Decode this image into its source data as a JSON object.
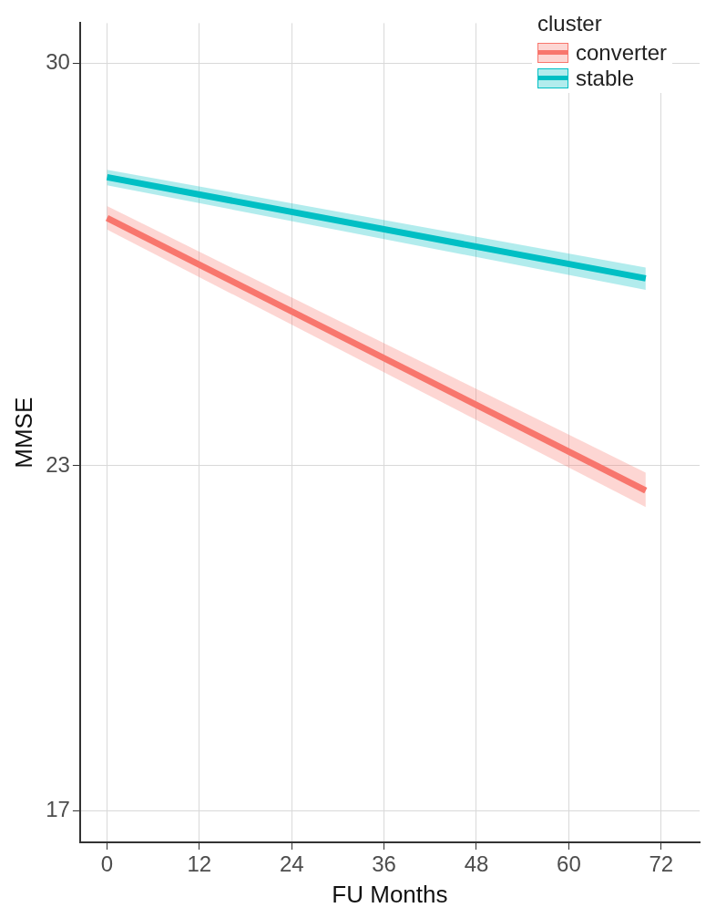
{
  "chart_data": {
    "type": "line",
    "xlabel": "FU Months",
    "ylabel": "MMSE",
    "legend_title": "cluster",
    "legend": "top right",
    "grid": true,
    "marker": "none",
    "line_style": "solid",
    "xlim": [
      -3.5,
      77
    ],
    "x": [
      0,
      70
    ],
    "xticks": [
      0,
      12,
      24,
      36,
      48,
      60,
      72
    ],
    "ylim": [
      16.45,
      30.7
    ],
    "yticks": [
      17,
      23,
      30
    ],
    "series": [
      {
        "name": "converter",
        "color": "#f8766d",
        "values": [
          27.31,
          22.57
        ],
        "lower": [
          27.11,
          22.28
        ],
        "upper": [
          27.52,
          22.88
        ]
      },
      {
        "name": "stable",
        "color": "#00bfc4",
        "values": [
          28.02,
          26.26
        ],
        "lower": [
          27.88,
          26.06
        ],
        "upper": [
          28.15,
          26.45
        ]
      }
    ]
  }
}
